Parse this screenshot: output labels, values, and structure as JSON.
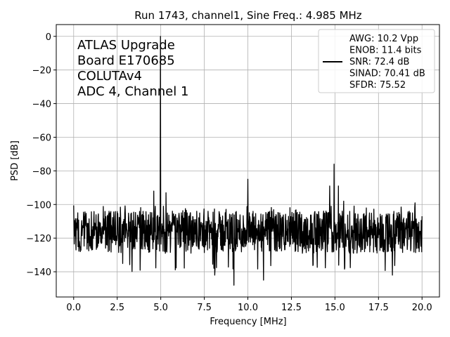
{
  "chart_data": {
    "type": "line",
    "title": "Run 1743, channel1, Sine Freq.: 4.985 MHz",
    "xlabel": "Frequency [MHz]",
    "ylabel": "PSD [dB]",
    "xlim": [
      -1.0,
      21.0
    ],
    "ylim": [
      -155,
      7
    ],
    "x_ticks": [
      0.0,
      2.5,
      5.0,
      7.5,
      10.0,
      12.5,
      15.0,
      17.5,
      20.0
    ],
    "x_tick_labels": [
      "0.0",
      "2.5",
      "5.0",
      "7.5",
      "10.0",
      "12.5",
      "15.0",
      "17.5",
      "20.0"
    ],
    "y_ticks": [
      0,
      -20,
      -40,
      -60,
      -80,
      -100,
      -120,
      -140
    ],
    "y_tick_labels": [
      "0",
      "−20",
      "−40",
      "−60",
      "−80",
      "−100",
      "−120",
      "−140"
    ],
    "grid": true,
    "annotation_lines": [
      "ATLAS Upgrade",
      " Board E170685",
      "COLUTAv4",
      "ADC 4, Channel 1"
    ],
    "legend": {
      "position": "top-right",
      "lines": [
        "AWG: 10.2 Vpp",
        "ENOB: 11.4 bits",
        "SNR: 72.4 dB",
        "SINAD: 70.41 dB",
        "SFDR: 75.52"
      ]
    },
    "series": [
      {
        "color": "#000000",
        "x_range": [
          0.0,
          20.0
        ],
        "noise_floor_range": [
          -135,
          -100
        ],
        "peaks": [
          {
            "x": 4.985,
            "y": 0
          },
          {
            "x": 4.6,
            "y": -92
          },
          {
            "x": 5.3,
            "y": -93
          },
          {
            "x": 10.0,
            "y": -85
          },
          {
            "x": 14.95,
            "y": -76
          },
          {
            "x": 14.7,
            "y": -89
          },
          {
            "x": 15.2,
            "y": -89
          },
          {
            "x": 15.5,
            "y": -98
          },
          {
            "x": 19.6,
            "y": -99
          }
        ],
        "dips": [
          {
            "x": 8.1,
            "y": -142
          },
          {
            "x": 9.2,
            "y": -148
          },
          {
            "x": 10.9,
            "y": -145
          },
          {
            "x": 18.3,
            "y": -142
          }
        ]
      }
    ]
  }
}
